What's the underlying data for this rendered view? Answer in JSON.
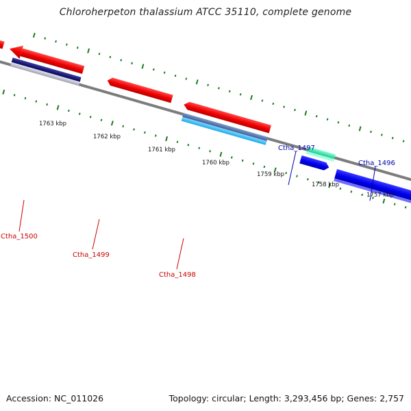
{
  "title": "Chloroherpeton thalassium ATCC 35110, complete genome",
  "footer": {
    "accession": "Accession: NC_011026",
    "summary": "Topology: circular; Length: 3,293,456 bp; Genes: 2,757"
  },
  "ruler": {
    "labels": [
      "1763 kbp",
      "1762 kbp",
      "1761 kbp",
      "1760 kbp",
      "1759 kbp",
      "1758 kbp",
      "1757 kbp"
    ],
    "tick_color": "#1a7a1a"
  },
  "genes": [
    {
      "name": "Ctha_1500",
      "strand": "reverse",
      "color": "#cc0000"
    },
    {
      "name": "Ctha_1499",
      "strand": "reverse",
      "color": "#cc0000"
    },
    {
      "name": "Ctha_1498",
      "strand": "reverse",
      "color": "#cc0000"
    },
    {
      "name": "Ctha_1497",
      "strand": "forward",
      "color": "#0000aa"
    },
    {
      "name": "Ctha_1496",
      "strand": "forward",
      "color": "#0000aa"
    }
  ],
  "colors": {
    "backbone": "#808080",
    "red_gene": "#ee0000",
    "blue_gene": "#0000ee",
    "navy_feature": "#0a0a7a",
    "sky_feature": "#2bb8f0",
    "green_feature": "#2fe8a8",
    "silver_feature": "#b8b8c8"
  }
}
